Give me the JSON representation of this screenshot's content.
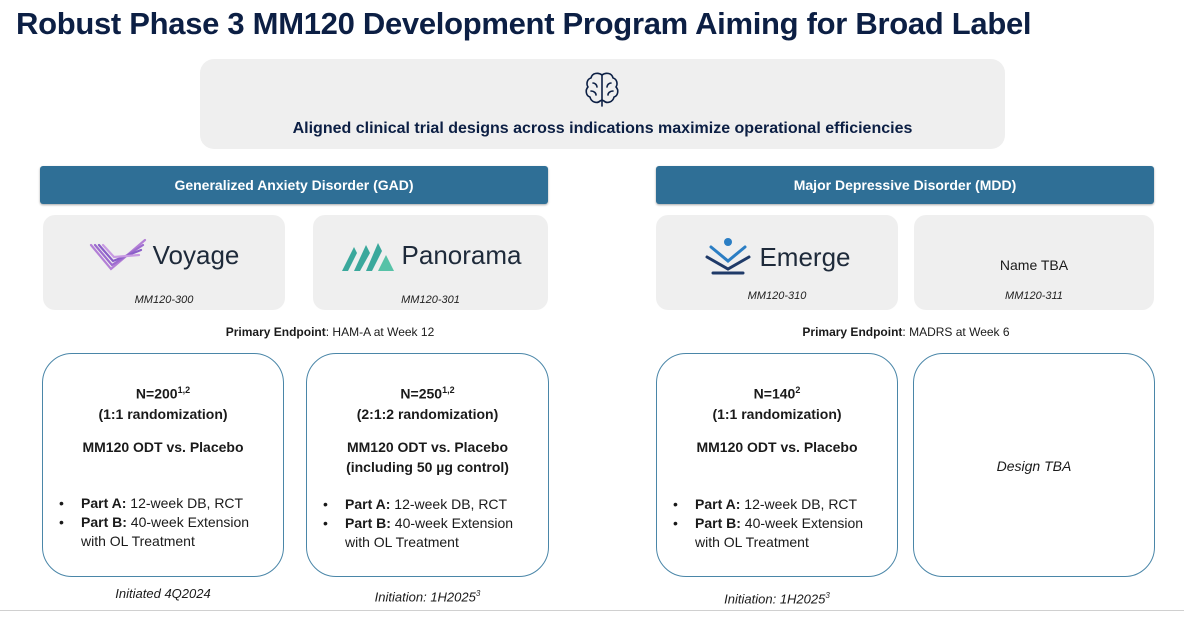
{
  "title": "Robust Phase 3 MM120 Development Program Aiming for Broad Label",
  "banner": {
    "icon": "brain-icon",
    "text": "Aligned clinical trial designs across indications maximize operational efficiencies"
  },
  "gad": {
    "header": "Generalized Anxiety Disorder (GAD)",
    "studies": [
      {
        "logo": "Voyage",
        "code": "MM120-300"
      },
      {
        "logo": "Panorama",
        "code": "MM120-301"
      }
    ],
    "endpoint_label": "Primary Endpoint",
    "endpoint_text": ": HAM-A at Week 12",
    "details": [
      {
        "n": "N=200",
        "n_sup": "1,2",
        "randomization": "(1:1 randomization)",
        "comparison": "MM120 ODT vs. Placebo",
        "part_a_label": "Part A:",
        "part_a_text": " 12-week DB, RCT",
        "part_b_label": "Part B:",
        "part_b_text": " 40-week Extension with OL Treatment",
        "footer": "Initiated 4Q2024",
        "footer_sup": ""
      },
      {
        "n": "N=250",
        "n_sup": "1,2",
        "randomization": "(2:1:2 randomization)",
        "comparison": "MM120 ODT vs. Placebo",
        "comparison_2": "(including 50 µg control)",
        "part_a_label": "Part A:",
        "part_a_text": " 12-week DB, RCT",
        "part_b_label": "Part B:",
        "part_b_text": " 40-week Extension with OL Treatment",
        "footer": "Initiation: 1H2025",
        "footer_sup": "3"
      }
    ]
  },
  "mdd": {
    "header": "Major Depressive Disorder (MDD)",
    "studies": [
      {
        "logo": "Emerge",
        "code": "MM120-310"
      },
      {
        "logo": "Name TBA",
        "code": "MM120-311"
      }
    ],
    "endpoint_label": "Primary Endpoint",
    "endpoint_text": ": MADRS at Week 6",
    "details": [
      {
        "n": "N=140",
        "n_sup": "2",
        "randomization": "(1:1 randomization)",
        "comparison": "MM120 ODT vs. Placebo",
        "part_a_label": "Part A:",
        "part_a_text": " 12-week DB, RCT",
        "part_b_label": "Part B:",
        "part_b_text": " 40-week Extension with OL Treatment",
        "footer": "Initiation: 1H2025",
        "footer_sup": "3"
      },
      {
        "design": "Design TBA"
      }
    ]
  }
}
